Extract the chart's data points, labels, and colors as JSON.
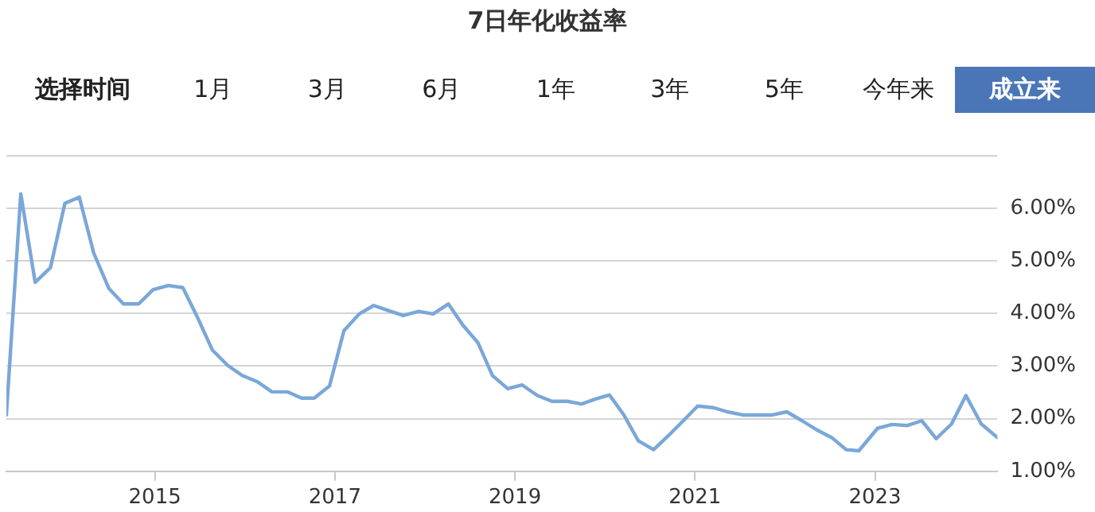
{
  "chart_data": {
    "type": "line",
    "title": "7日年化收益率",
    "annotations": [
      "选择时间",
      "1月",
      "3月",
      "6月",
      "1年",
      "3年",
      "5年",
      "今年来",
      "成立来"
    ],
    "x": [
      2013.35,
      2013.51,
      2013.67,
      2013.84,
      2014.0,
      2014.16,
      2014.32,
      2014.49,
      2014.65,
      2014.82,
      2014.98,
      2015.15,
      2015.31,
      2015.48,
      2015.64,
      2015.81,
      2015.97,
      2016.14,
      2016.3,
      2016.47,
      2016.63,
      2016.77,
      2016.94,
      2017.1,
      2017.27,
      2017.43,
      2017.6,
      2017.76,
      2017.93,
      2018.09,
      2018.26,
      2018.42,
      2018.59,
      2018.75,
      2018.92,
      2019.08,
      2019.25,
      2019.41,
      2019.58,
      2019.74,
      2019.91,
      2020.05,
      2020.21,
      2020.37,
      2020.54,
      2020.7,
      2020.87,
      2021.03,
      2021.2,
      2021.36,
      2021.53,
      2021.69,
      2021.86,
      2022.02,
      2022.19,
      2022.35,
      2022.52,
      2022.68,
      2022.82,
      2023.03,
      2023.19,
      2023.36,
      2023.52,
      2023.68,
      2023.85,
      2024.01,
      2024.18,
      2024.36
    ],
    "series": [
      {
        "color": "#7aa7d8",
        "values": [
          2.07,
          6.27,
          4.59,
          4.87,
          6.09,
          6.21,
          5.15,
          4.47,
          4.18,
          4.18,
          4.45,
          4.53,
          4.49,
          3.9,
          3.3,
          3.01,
          2.82,
          2.7,
          2.51,
          2.51,
          2.39,
          2.39,
          2.62,
          3.67,
          3.99,
          4.15,
          4.05,
          3.96,
          4.04,
          3.99,
          4.18,
          3.78,
          3.44,
          2.82,
          2.57,
          2.64,
          2.44,
          2.33,
          2.33,
          2.28,
          2.38,
          2.45,
          2.07,
          1.58,
          1.41,
          1.67,
          1.96,
          2.24,
          2.21,
          2.13,
          2.07,
          2.07,
          2.07,
          2.13,
          1.96,
          1.79,
          1.64,
          1.41,
          1.39,
          1.82,
          1.89,
          1.87,
          1.96,
          1.62,
          1.9,
          2.44,
          1.9,
          1.64
        ]
      }
    ],
    "xlim": [
      2013.35,
      2024.36
    ],
    "xticks": [
      2015,
      2017,
      2019,
      2021,
      2023
    ],
    "ylim": [
      1,
      7
    ],
    "yticks": [
      {
        "value": 1,
        "label": "1.00%"
      },
      {
        "value": 2,
        "label": "2.00%"
      },
      {
        "value": 3,
        "label": "3.00%"
      },
      {
        "value": 4,
        "label": "4.00%"
      },
      {
        "value": 5,
        "label": "5.00%"
      },
      {
        "value": 6,
        "label": "6.00%"
      },
      {
        "value": 7,
        "label": null
      }
    ],
    "grid": "y",
    "legend": false,
    "marker": "none",
    "line_style": "solid"
  }
}
